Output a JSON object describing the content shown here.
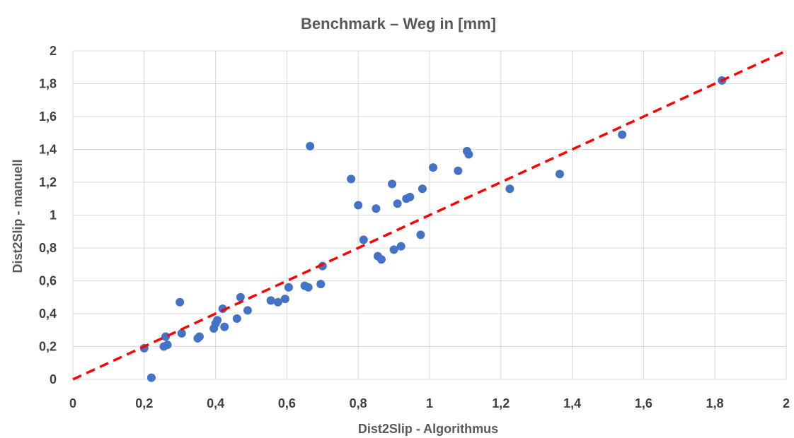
{
  "chart_data": {
    "type": "scatter",
    "title": "Benchmark – Weg in [mm]",
    "xlabel": "Dist2Slip - Algorithmus",
    "ylabel": "Dist2Slip - manuell",
    "xlim": [
      0,
      2
    ],
    "ylim": [
      0,
      2
    ],
    "x_ticks": [
      "0",
      "0,2",
      "0,4",
      "0,6",
      "0,8",
      "1",
      "1,2",
      "1,4",
      "1,6",
      "1,8",
      "2"
    ],
    "y_ticks": [
      "0",
      "0,2",
      "0,4",
      "0,6",
      "0,8",
      "1",
      "1,2",
      "1,4",
      "1,6",
      "1,8",
      "2"
    ],
    "grid": true,
    "legend": "none",
    "series": [
      {
        "marker_color": "#4472c4",
        "points": [
          [
            0.2,
            0.19
          ],
          [
            0.22,
            0.01
          ],
          [
            0.255,
            0.2
          ],
          [
            0.26,
            0.26
          ],
          [
            0.265,
            0.21
          ],
          [
            0.3,
            0.47
          ],
          [
            0.305,
            0.28
          ],
          [
            0.35,
            0.25
          ],
          [
            0.355,
            0.26
          ],
          [
            0.395,
            0.31
          ],
          [
            0.4,
            0.34
          ],
          [
            0.405,
            0.36
          ],
          [
            0.42,
            0.43
          ],
          [
            0.425,
            0.32
          ],
          [
            0.46,
            0.37
          ],
          [
            0.47,
            0.5
          ],
          [
            0.49,
            0.42
          ],
          [
            0.555,
            0.48
          ],
          [
            0.575,
            0.47
          ],
          [
            0.595,
            0.49
          ],
          [
            0.605,
            0.56
          ],
          [
            0.65,
            0.57
          ],
          [
            0.66,
            0.56
          ],
          [
            0.665,
            1.42
          ],
          [
            0.695,
            0.58
          ],
          [
            0.7,
            0.69
          ],
          [
            0.78,
            1.22
          ],
          [
            0.8,
            1.06
          ],
          [
            0.815,
            0.85
          ],
          [
            0.85,
            1.04
          ],
          [
            0.855,
            0.75
          ],
          [
            0.865,
            0.73
          ],
          [
            0.895,
            1.19
          ],
          [
            0.9,
            0.79
          ],
          [
            0.91,
            1.07
          ],
          [
            0.92,
            0.81
          ],
          [
            0.935,
            1.1
          ],
          [
            0.945,
            1.11
          ],
          [
            0.975,
            0.88
          ],
          [
            0.98,
            1.16
          ],
          [
            1.01,
            1.29
          ],
          [
            1.08,
            1.27
          ],
          [
            1.105,
            1.39
          ],
          [
            1.11,
            1.37
          ],
          [
            1.225,
            1.16
          ],
          [
            1.365,
            1.25
          ],
          [
            1.54,
            1.49
          ],
          [
            1.82,
            1.82
          ]
        ]
      }
    ],
    "reference_line": {
      "x": [
        0,
        2
      ],
      "y": [
        0,
        2
      ],
      "color": "#ff0000",
      "style": "dashed"
    }
  }
}
